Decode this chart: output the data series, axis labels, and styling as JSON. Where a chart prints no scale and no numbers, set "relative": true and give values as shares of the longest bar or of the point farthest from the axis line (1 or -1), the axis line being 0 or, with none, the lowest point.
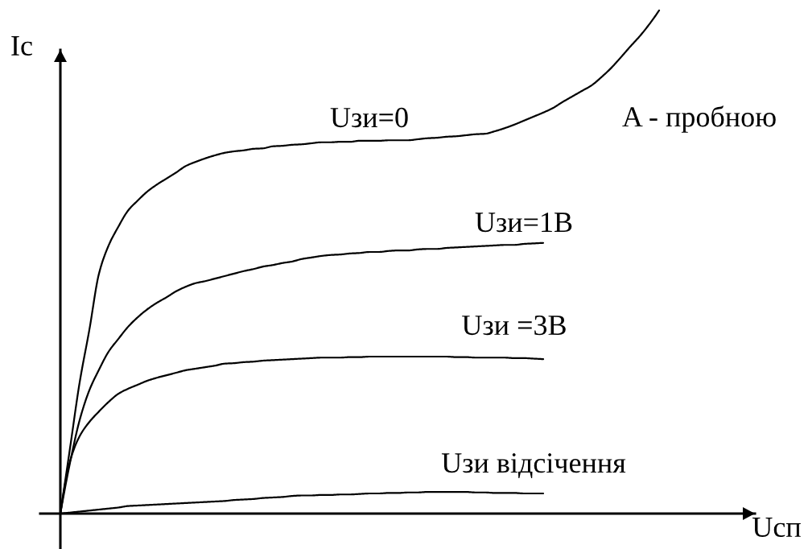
{
  "chart_data": {
    "type": "line",
    "relative": true,
    "xlabel": "Uсп",
    "ylabel": "Iс",
    "annotations": [
      "A - пробною"
    ],
    "categories": [
      null,
      null,
      null,
      null,
      null,
      null,
      null,
      null,
      null,
      null,
      null,
      null,
      null,
      null,
      null,
      null,
      null,
      null,
      null,
      null,
      null,
      null,
      null,
      null,
      null,
      null,
      null,
      null,
      null,
      null,
      null,
      null,
      null,
      null,
      null,
      null,
      null,
      null,
      null,
      null,
      null,
      null,
      null,
      null,
      null,
      null,
      null,
      null,
      null,
      null,
      null,
      null,
      null,
      null,
      null,
      null,
      null,
      null,
      null,
      null,
      null,
      null,
      null
    ],
    "series": [
      {
        "name": "Uзи=0",
        "color": "#000000",
        "values": [
          0,
          0.13,
          0.261,
          0.365,
          0.477,
          0.533,
          0.57,
          0.602,
          0.622,
          0.64,
          0.654,
          0.666,
          0.678,
          0.691,
          0.699,
          0.706,
          0.712,
          0.717,
          0.72,
          0.722,
          0.725,
          0.726,
          0.73,
          0.731,
          0.733,
          0.734,
          0.736,
          0.738,
          0.738,
          0.739,
          0.739,
          0.741,
          0.741,
          0.741,
          0.742,
          0.742,
          0.742,
          0.744,
          0.746,
          0.747,
          0.749,
          0.75,
          0.752,
          0.754,
          0.755,
          0.76,
          0.766,
          0.773,
          0.781,
          0.789,
          0.797,
          0.806,
          0.818,
          0.829,
          0.84,
          0.851,
          0.867,
          0.885,
          0.906,
          0.928,
          0.949,
          0.973,
          1.0
        ]
      },
      {
        "name": "Uзи=1В",
        "color": "#000000",
        "values": [
          0,
          0.101,
          0.186,
          0.245,
          0.286,
          0.322,
          0.347,
          0.371,
          0.39,
          0.406,
          0.419,
          0.43,
          0.442,
          0.451,
          0.458,
          0.462,
          0.467,
          0.472,
          0.477,
          0.482,
          0.486,
          0.491,
          0.494,
          0.498,
          0.501,
          0.506,
          0.509,
          0.512,
          0.514,
          0.515,
          0.517,
          0.518,
          0.52,
          0.52,
          0.522,
          0.523,
          0.523,
          0.525,
          0.526,
          0.526,
          0.528,
          0.529,
          0.53,
          0.531,
          0.532,
          0.533,
          0.534,
          0.534,
          0.536,
          0.537,
          0.538,
          null,
          null,
          null,
          null,
          null,
          null,
          null,
          null,
          null,
          null,
          null,
          null
        ]
      },
      {
        "name": "Uзи =3В",
        "color": "#000000",
        "values": [
          0,
          0.104,
          0.154,
          0.182,
          0.203,
          0.222,
          0.238,
          0.248,
          0.256,
          0.264,
          0.27,
          0.275,
          0.28,
          0.285,
          0.288,
          0.291,
          0.294,
          0.298,
          0.299,
          0.301,
          0.302,
          0.304,
          0.305,
          0.306,
          0.307,
          0.308,
          0.309,
          0.31,
          0.31,
          0.31,
          0.311,
          0.311,
          0.312,
          0.312,
          0.312,
          0.312,
          0.312,
          0.312,
          0.312,
          0.312,
          0.312,
          0.311,
          0.311,
          0.31,
          0.31,
          0.31,
          0.31,
          0.309,
          0.309,
          0.308,
          0.307,
          null,
          null,
          null,
          null,
          null,
          null,
          null,
          null,
          null,
          null,
          null,
          null
        ]
      },
      {
        "name": "Uзи відсічення",
        "color": "#000000",
        "values": [
          0,
          0.002,
          0.004,
          0.006,
          0.008,
          0.01,
          0.012,
          0.015,
          0.016,
          0.017,
          0.018,
          0.019,
          0.02,
          0.021,
          0.022,
          0.023,
          0.024,
          0.025,
          0.027,
          0.028,
          0.029,
          0.031,
          0.032,
          0.033,
          0.035,
          0.036,
          0.036,
          0.037,
          0.037,
          0.038,
          0.038,
          0.039,
          0.04,
          0.04,
          0.041,
          0.041,
          0.042,
          0.042,
          0.043,
          0.043,
          0.043,
          0.043,
          0.043,
          0.042,
          0.042,
          0.041,
          0.041,
          0.041,
          0.04,
          0.04,
          0.04,
          null,
          null,
          null,
          null,
          null,
          null,
          null,
          null,
          null,
          null,
          null,
          null
        ]
      }
    ]
  }
}
